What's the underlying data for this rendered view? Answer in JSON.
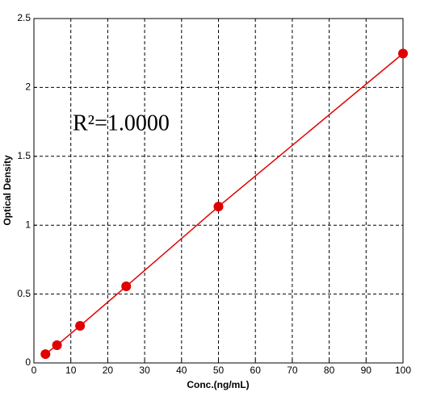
{
  "chart_data": {
    "type": "scatter",
    "annotation": "R²=1.0000",
    "x_label": "Conc.(ng/mL)",
    "y_label": "Optical Density",
    "x": [
      3.125,
      6.25,
      12.5,
      25,
      50,
      100
    ],
    "values": [
      0.064,
      0.129,
      0.269,
      0.556,
      1.135,
      2.246
    ],
    "color": "#e00000",
    "connect": true,
    "xlim": [
      0,
      100
    ],
    "xticks": [
      0,
      10,
      20,
      30,
      40,
      50,
      60,
      70,
      80,
      90,
      100
    ],
    "ylim": [
      0,
      2.5
    ],
    "yticks": [
      0,
      0.5,
      1,
      1.5,
      2,
      2.5
    ],
    "grid": true
  }
}
